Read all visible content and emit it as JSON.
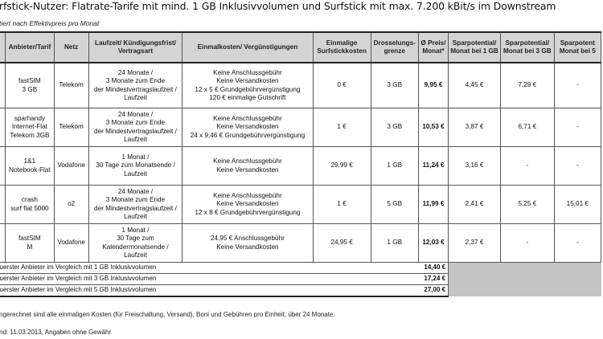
{
  "title": "rfstick-Nutzer: Flatrate-Tarife mit mind. 1 GB Inklusivvolumen und Surfstick mit max. 7.200 kBit/s im Downstream",
  "subtitle": "tiert nach Effektivpreis pro Monat",
  "headers": [
    "Anbieter/Tarif",
    "Netz",
    "Laufzeit/ Kündigungsfrist/ Vertragsart",
    "Einmalkosten/ Vergünstigungen",
    "Einmalige Surfstickkosten",
    "Drosselungs- grenze",
    "Ø Preis/ Monat*",
    "Sparpotential/ Monat bei 1 GB",
    "Sparpotential/ Monat bei 3 GB",
    "Sparpotent Monat bei 5"
  ],
  "rows": [
    {
      "tarif": [
        "fastSIM",
        "3 GB"
      ],
      "netz": "Telekom",
      "laufzeit": [
        "24 Monate /",
        "3 Monate zum Ende",
        "der Mindestvertragslaufzeit /",
        "Laufzeit"
      ],
      "einmal": [
        "Keine Anschlussgebühr",
        "Keine Versandkosten",
        "12 x 5 € Grundgebührvergünstigung",
        "120 € einmalige Gutschrift"
      ],
      "stick": "0 €",
      "drossel": "3 GB",
      "preis": "9,95 €",
      "sp1": "4,45 €",
      "sp3": "7,29 €",
      "sp5": "-"
    },
    {
      "tarif": [
        "sparhandy",
        "Internet-Flat",
        "Telekom 3GB"
      ],
      "netz": "Telekom",
      "laufzeit": [
        "24 Monate /",
        "3 Monate zum Ende",
        "der Mindestvertragslaufzeit /",
        "Laufzeit"
      ],
      "einmal": [
        "Keine Anschlussgebühr",
        "Keine Versandkosten",
        "24 x 9,46 € Grundgebührvergünstigung"
      ],
      "stick": "1 €",
      "drossel": "3 GB",
      "preis": "10,53 €",
      "sp1": "3,87 €",
      "sp3": "6,71 €",
      "sp5": "-"
    },
    {
      "tarif": [
        "1&1",
        "Notebook-Flat"
      ],
      "netz": "Vodafone",
      "laufzeit": [
        "1 Monat /",
        "30 Tage zum Monatsende /",
        "Laufzeit"
      ],
      "einmal": [
        "Keine Anschlussgebühr",
        "Keine Versandkosten"
      ],
      "stick": "29,99 €",
      "drossel": "1 GB",
      "preis": "11,24 €",
      "sp1": "3,16 €",
      "sp3": "-",
      "sp5": "-"
    },
    {
      "tarif": [
        "crash",
        "surf flat 5000"
      ],
      "netz": "o2",
      "laufzeit": [
        "24 Monate /",
        "3 Monate zum Ende",
        "der Mindestvertragslaufzeit /",
        "Laufzeit"
      ],
      "einmal": [
        "Keine Anschlussgebühr",
        "Keine Versandkosten",
        "12 x 8 € Grundgebührvergünstigung"
      ],
      "stick": "1 €",
      "drossel": "5 GB",
      "preis": "11,99 €",
      "sp1": "2,41 €",
      "sp3": "5,25 €",
      "sp5": "15,01 €"
    },
    {
      "tarif": [
        "fastSIM",
        "M"
      ],
      "netz": "Vodafone",
      "laufzeit": [
        "1 Monat /",
        "30 Tage zum",
        "Kalendermonatsende /",
        "Laufzeit"
      ],
      "einmal": [
        "24,95 € Anschlussgebühr",
        "Keine Versandkosten"
      ],
      "stick": "24,95 €",
      "drossel": "1 GB",
      "preis": "12,03 €",
      "sp1": "2,37 €",
      "sp3": "-",
      "sp5": "-"
    }
  ],
  "summary": [
    {
      "label": "uerster Anbieter im Vergleich mit 1 GB Inklusivvolumen",
      "value": "14,40 €"
    },
    {
      "label": "uerster Anbieter im Vergleich mit 3 GB Inklusivvolumen",
      "value": "17,24 €"
    },
    {
      "label": "uerster Anbieter im Vergleich mit 5 GB Inklusivvolumen",
      "value": "27,00 €"
    }
  ],
  "footnote": "ngerechnet sind alle einmaligen Kosten (für Freischaltung, Versand), Boni und Gebühren pro Einheit, über 24 Monate.",
  "stand": "nd: 11.03.2013, Angaben ohne Gewähr"
}
